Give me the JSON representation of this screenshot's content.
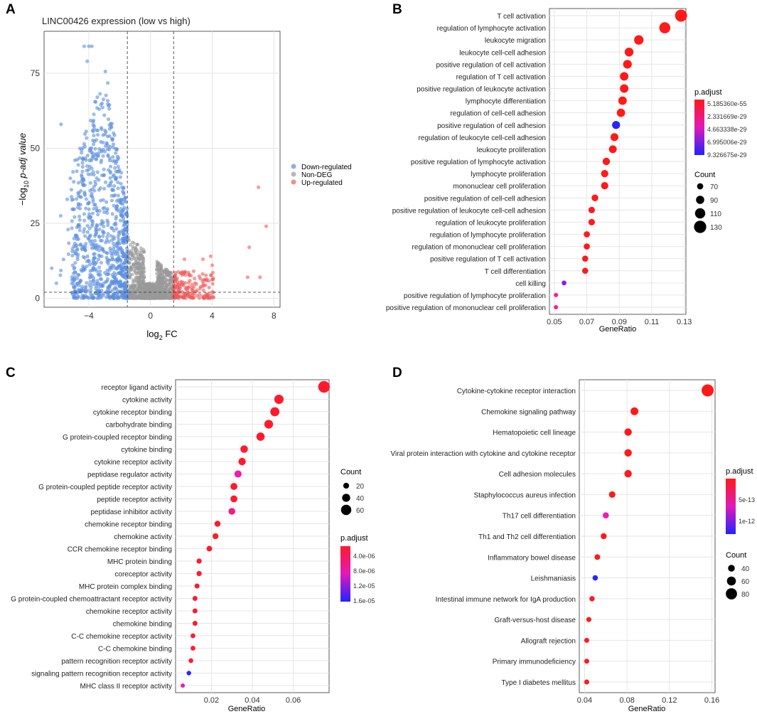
{
  "figure": {
    "panel_letters": [
      "A",
      "B",
      "C",
      "D"
    ]
  },
  "chart_data": [
    {
      "panel": "A",
      "type": "scatter",
      "title": "LINC00426 expression (low vs high)",
      "xlabel_base": "log",
      "xlabel_sub": "2",
      "xlabel_tail": " FC",
      "ylabel_pre": "−log",
      "ylabel_sub": "10",
      "ylabel_post": " p-adj value",
      "xlim": [
        -6.9,
        8.4
      ],
      "ylim": [
        -3,
        89
      ],
      "xticks": [
        -4,
        0,
        4,
        8
      ],
      "yticks": [
        0,
        25,
        50,
        75
      ],
      "threshold_fc": [
        -1.5,
        1.5
      ],
      "threshold_padj": 2,
      "legend": [
        {
          "label": "Down-regulated",
          "color": "#5b8fe0"
        },
        {
          "label": "Non-DEG",
          "color": "#9a9a9a"
        },
        {
          "label": "Up-regulated",
          "color": "#ef5b5b"
        }
      ],
      "outliers_up": [
        [
          7.0,
          37
        ],
        [
          7.5,
          24
        ],
        [
          6.4,
          17
        ],
        [
          6.3,
          7
        ],
        [
          7.1,
          7
        ],
        [
          3.4,
          13
        ],
        [
          4.0,
          11
        ],
        [
          2.2,
          13
        ],
        [
          2.8,
          9
        ],
        [
          3.9,
          14
        ]
      ],
      "outliers_down": [
        [
          -4.3,
          84
        ],
        [
          -4.0,
          84
        ],
        [
          -3.8,
          84
        ],
        [
          -4.1,
          79
        ],
        [
          -5.8,
          58
        ],
        [
          -6.4,
          10
        ],
        [
          -6.1,
          5
        ],
        [
          -5.4,
          33
        ],
        [
          -5.2,
          40
        ],
        [
          -4.9,
          46
        ]
      ]
    },
    {
      "panel": "B",
      "type": "dot",
      "xlabel": "GeneRatio",
      "xlim": [
        0.047,
        0.131
      ],
      "xticks": [
        0.05,
        0.07,
        0.09,
        0.11,
        0.13
      ],
      "xtick_labels": [
        "0.05",
        "0.07",
        "0.09",
        "0.11",
        "0.13"
      ],
      "categories": [
        "T cell activation",
        "regulation of lymphocyte activation",
        "leukocyte migration",
        "leukocyte cell-cell adhesion",
        "positive regulation of cell activation",
        "regulation of T cell activation",
        "positive regulation of leukocyte activation",
        "lymphocyte differentiation",
        "regulation of cell-cell adhesion",
        "positive regulation of cell adhesion",
        "regulation of leukocyte cell-cell adhesion",
        "leukocyte proliferation",
        "positive regulation of lymphocyte activation",
        "lymphocyte proliferation",
        "mononuclear cell proliferation",
        "positive regulation of cell-cell adhesion",
        "positive regulation of leukocyte cell-cell adhesion",
        "regulation of leukocyte proliferation",
        "regulation of lymphocyte proliferation",
        "regulation of mononuclear cell proliferation",
        "positive regulation of T cell activation",
        "T cell differentiation",
        "cell killing",
        "positive regulation of lymphocyte proliferation",
        "positive regulation of mononuclear cell proliferation"
      ],
      "gene_ratio": [
        0.128,
        0.118,
        0.102,
        0.096,
        0.095,
        0.093,
        0.093,
        0.092,
        0.091,
        0.088,
        0.087,
        0.086,
        0.082,
        0.081,
        0.081,
        0.075,
        0.073,
        0.073,
        0.07,
        0.07,
        0.069,
        0.069,
        0.056,
        0.051,
        0.051
      ],
      "count": [
        128,
        118,
        102,
        96,
        95,
        93,
        93,
        92,
        91,
        88,
        87,
        86,
        82,
        81,
        81,
        75,
        73,
        73,
        70,
        70,
        69,
        69,
        56,
        51,
        51
      ],
      "colors": [
        "#ff1a1a",
        "#ff1a1a",
        "#ff1a1a",
        "#ff1a1a",
        "#ff1a1a",
        "#ff1a1a",
        "#ff1a1a",
        "#ff1a1a",
        "#ff1a1a",
        "#2626ff",
        "#ff1a1a",
        "#ff1a1a",
        "#ff1a1a",
        "#ff1a1a",
        "#ff1a1a",
        "#ff1a1a",
        "#ff1a1a",
        "#ff1a1a",
        "#ff1a1a",
        "#ff1a1a",
        "#ff1a1a",
        "#ff1a1a",
        "#8a1aff",
        "#ff1a9a",
        "#ff1a9a"
      ],
      "padjust_title": "p.adjust",
      "padjust_labels": [
        "5.185360e-55",
        "2.331669e-29",
        "4.663338e-29",
        "6.995006e-29",
        "9.326675e-29"
      ],
      "count_title": "Count",
      "count_legend": [
        70,
        90,
        110,
        130
      ],
      "size_range": [
        51,
        128
      ]
    },
    {
      "panel": "C",
      "type": "dot",
      "xlabel": "GeneRatio",
      "xlim": [
        0.0025,
        0.0775
      ],
      "xticks": [
        0.02,
        0.04,
        0.06
      ],
      "xtick_labels": [
        "0.02",
        "0.04",
        "0.06"
      ],
      "categories": [
        "receptor ligand activity",
        "cytokine activity",
        "cytokine receptor binding",
        "carbohydrate binding",
        "G protein-coupled receptor binding",
        "cytokine binding",
        "cytokine receptor activity",
        "peptidase regulator activity",
        "G protein-coupled peptide receptor activity",
        "peptide receptor activity",
        "peptidase inhibitor activity",
        "chemokine receptor binding",
        "chemokine activity",
        "CCR chemokine receptor binding",
        "MHC protein binding",
        "coreceptor activity",
        "MHC protein complex binding",
        "G protein-coupled chemoattractant receptor activity",
        "chemokine receptor activity",
        "chemokine binding",
        "C-C chemokine receptor activity",
        "C-C chemokine binding",
        "pattern recognition receptor activity",
        "signaling pattern recognition receptor activity",
        "MHC class II receptor activity"
      ],
      "gene_ratio": [
        0.075,
        0.053,
        0.051,
        0.048,
        0.044,
        0.036,
        0.035,
        0.033,
        0.031,
        0.031,
        0.03,
        0.023,
        0.022,
        0.019,
        0.014,
        0.014,
        0.013,
        0.012,
        0.012,
        0.012,
        0.011,
        0.011,
        0.01,
        0.009,
        0.006
      ],
      "count": [
        72,
        51,
        49,
        46,
        42,
        35,
        34,
        32,
        30,
        30,
        29,
        22,
        21,
        18,
        14,
        14,
        13,
        12,
        12,
        12,
        11,
        11,
        10,
        9,
        6
      ],
      "colors": [
        "#ff1a2e",
        "#ff1a2e",
        "#ff1a2e",
        "#ff1a2e",
        "#ff1a2e",
        "#ff1a2e",
        "#ff1a2e",
        "#ee1ab4",
        "#ff1a2e",
        "#ff1a2e",
        "#f51a8c",
        "#ff1a2e",
        "#ff1a2e",
        "#ff1a2e",
        "#ff1a2e",
        "#ff1a2e",
        "#ff1a2e",
        "#ff1a2e",
        "#ff1a2e",
        "#ff1a2e",
        "#ff1a2e",
        "#ff1a2e",
        "#ff1a2e",
        "#2626ff",
        "#ee1ab4"
      ],
      "padjust_title": "p.adjust",
      "padjust_labels": [
        "4.0e-06",
        "8.0e-06",
        "1.2e-05",
        "1.6e-05"
      ],
      "count_title": "Count",
      "count_legend": [
        20,
        40,
        60
      ],
      "size_range": [
        6,
        72
      ]
    },
    {
      "panel": "D",
      "type": "dot",
      "xlabel": "GeneRatio",
      "xlim": [
        0.035,
        0.163
      ],
      "xticks": [
        0.04,
        0.08,
        0.12,
        0.16
      ],
      "xtick_labels": [
        "0.04",
        "0.08",
        "0.12",
        "0.16"
      ],
      "categories": [
        "Cytokine-cytokine receptor interaction",
        "Chemokine signaling pathway",
        "Hematopoietic cell lineage",
        "Viral protein interaction with cytokine and cytokine receptor",
        "Cell adhesion molecules",
        "Staphylococcus aureus infection",
        "Th17 cell differentiation",
        "Th1 and Th2 cell differentiation",
        "Inflammatory bowel disease",
        "Leishmaniasis",
        "Intestinal immune network for IgA production",
        "Graft-versus-host disease",
        "Allograft rejection",
        "Primary immunodeficiency",
        "Type I diabetes mellitus"
      ],
      "gene_ratio": [
        0.156,
        0.087,
        0.081,
        0.081,
        0.081,
        0.066,
        0.06,
        0.058,
        0.052,
        0.05,
        0.047,
        0.044,
        0.042,
        0.042,
        0.042
      ],
      "count": [
        88,
        50,
        46,
        46,
        46,
        38,
        34,
        33,
        30,
        28,
        27,
        25,
        24,
        24,
        24
      ],
      "colors": [
        "#ff1a1a",
        "#ff1a1a",
        "#ff1a1a",
        "#ff1a1a",
        "#ff1a1a",
        "#ff1a1a",
        "#ee1ab4",
        "#ff1a1a",
        "#ff1a1a",
        "#2626ff",
        "#ff1a1a",
        "#ff1a1a",
        "#ff1a1a",
        "#ff1a1a",
        "#ff1a1a"
      ],
      "padjust_title": "p.adjust",
      "padjust_labels": [
        "5e-13",
        "1e-12"
      ],
      "count_title": "Count",
      "count_legend": [
        40,
        60,
        80
      ],
      "size_range": [
        24,
        88
      ]
    }
  ]
}
